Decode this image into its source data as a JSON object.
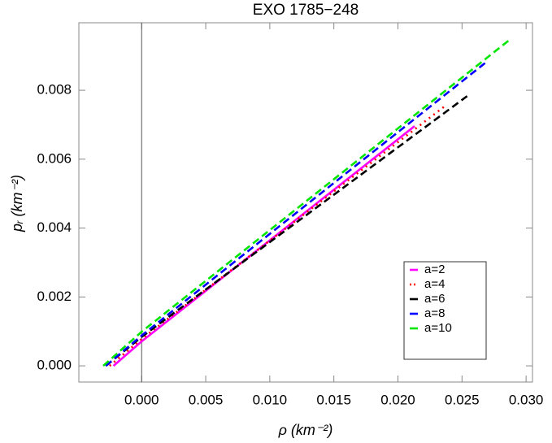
{
  "chart_data": {
    "type": "line",
    "title": "EXO 1785−248",
    "x_label": "ρ  (km⁻²)",
    "y_label": "pᵣ  (km⁻²)",
    "xlim": [
      -0.0049,
      0.0305
    ],
    "ylim": [
      -0.00047,
      0.00996
    ],
    "xticks": [
      {
        "value": 0,
        "label": "0.000"
      },
      {
        "value": 0.005,
        "label": "0.005"
      },
      {
        "value": 0.01,
        "label": "0.010"
      },
      {
        "value": 0.015,
        "label": "0.015"
      },
      {
        "value": 0.02,
        "label": "0.020"
      },
      {
        "value": 0.025,
        "label": "0.025"
      },
      {
        "value": 0.03,
        "label": "0.030"
      }
    ],
    "yticks": [
      {
        "value": 0,
        "label": "0.000"
      },
      {
        "value": 0.002,
        "label": "0.002"
      },
      {
        "value": 0.004,
        "label": "0.004"
      },
      {
        "value": 0.006,
        "label": "0.006"
      },
      {
        "value": 0.008,
        "label": "0.008"
      }
    ],
    "series": [
      {
        "name": "a=2",
        "color": "#ff00ff",
        "style": "solid",
        "x": [
          -0.0022,
          0,
          0.0213
        ],
        "values": [
          0,
          0.00071,
          0.00696
        ]
      },
      {
        "name": "a=4",
        "color": "#ff0000",
        "style": "dotted",
        "x": [
          -0.0025,
          0,
          0.0237
        ],
        "values": [
          0,
          0.00078,
          0.00755
        ]
      },
      {
        "name": "a=6",
        "color": "#000000",
        "style": "dashed",
        "x": [
          -0.0028,
          0,
          0.0254
        ],
        "values": [
          0,
          0.00084,
          0.00783
        ]
      },
      {
        "name": "a=8",
        "color": "#0000ff",
        "style": "dashed",
        "x": [
          -0.0028,
          0,
          0.027
        ],
        "values": [
          0,
          0.00088,
          0.00885
        ]
      },
      {
        "name": "a=10",
        "color": "#00e600",
        "style": "dashed",
        "x": [
          -0.003,
          0,
          0.0288
        ],
        "values": [
          0,
          0.00099,
          0.00949
        ]
      }
    ]
  }
}
